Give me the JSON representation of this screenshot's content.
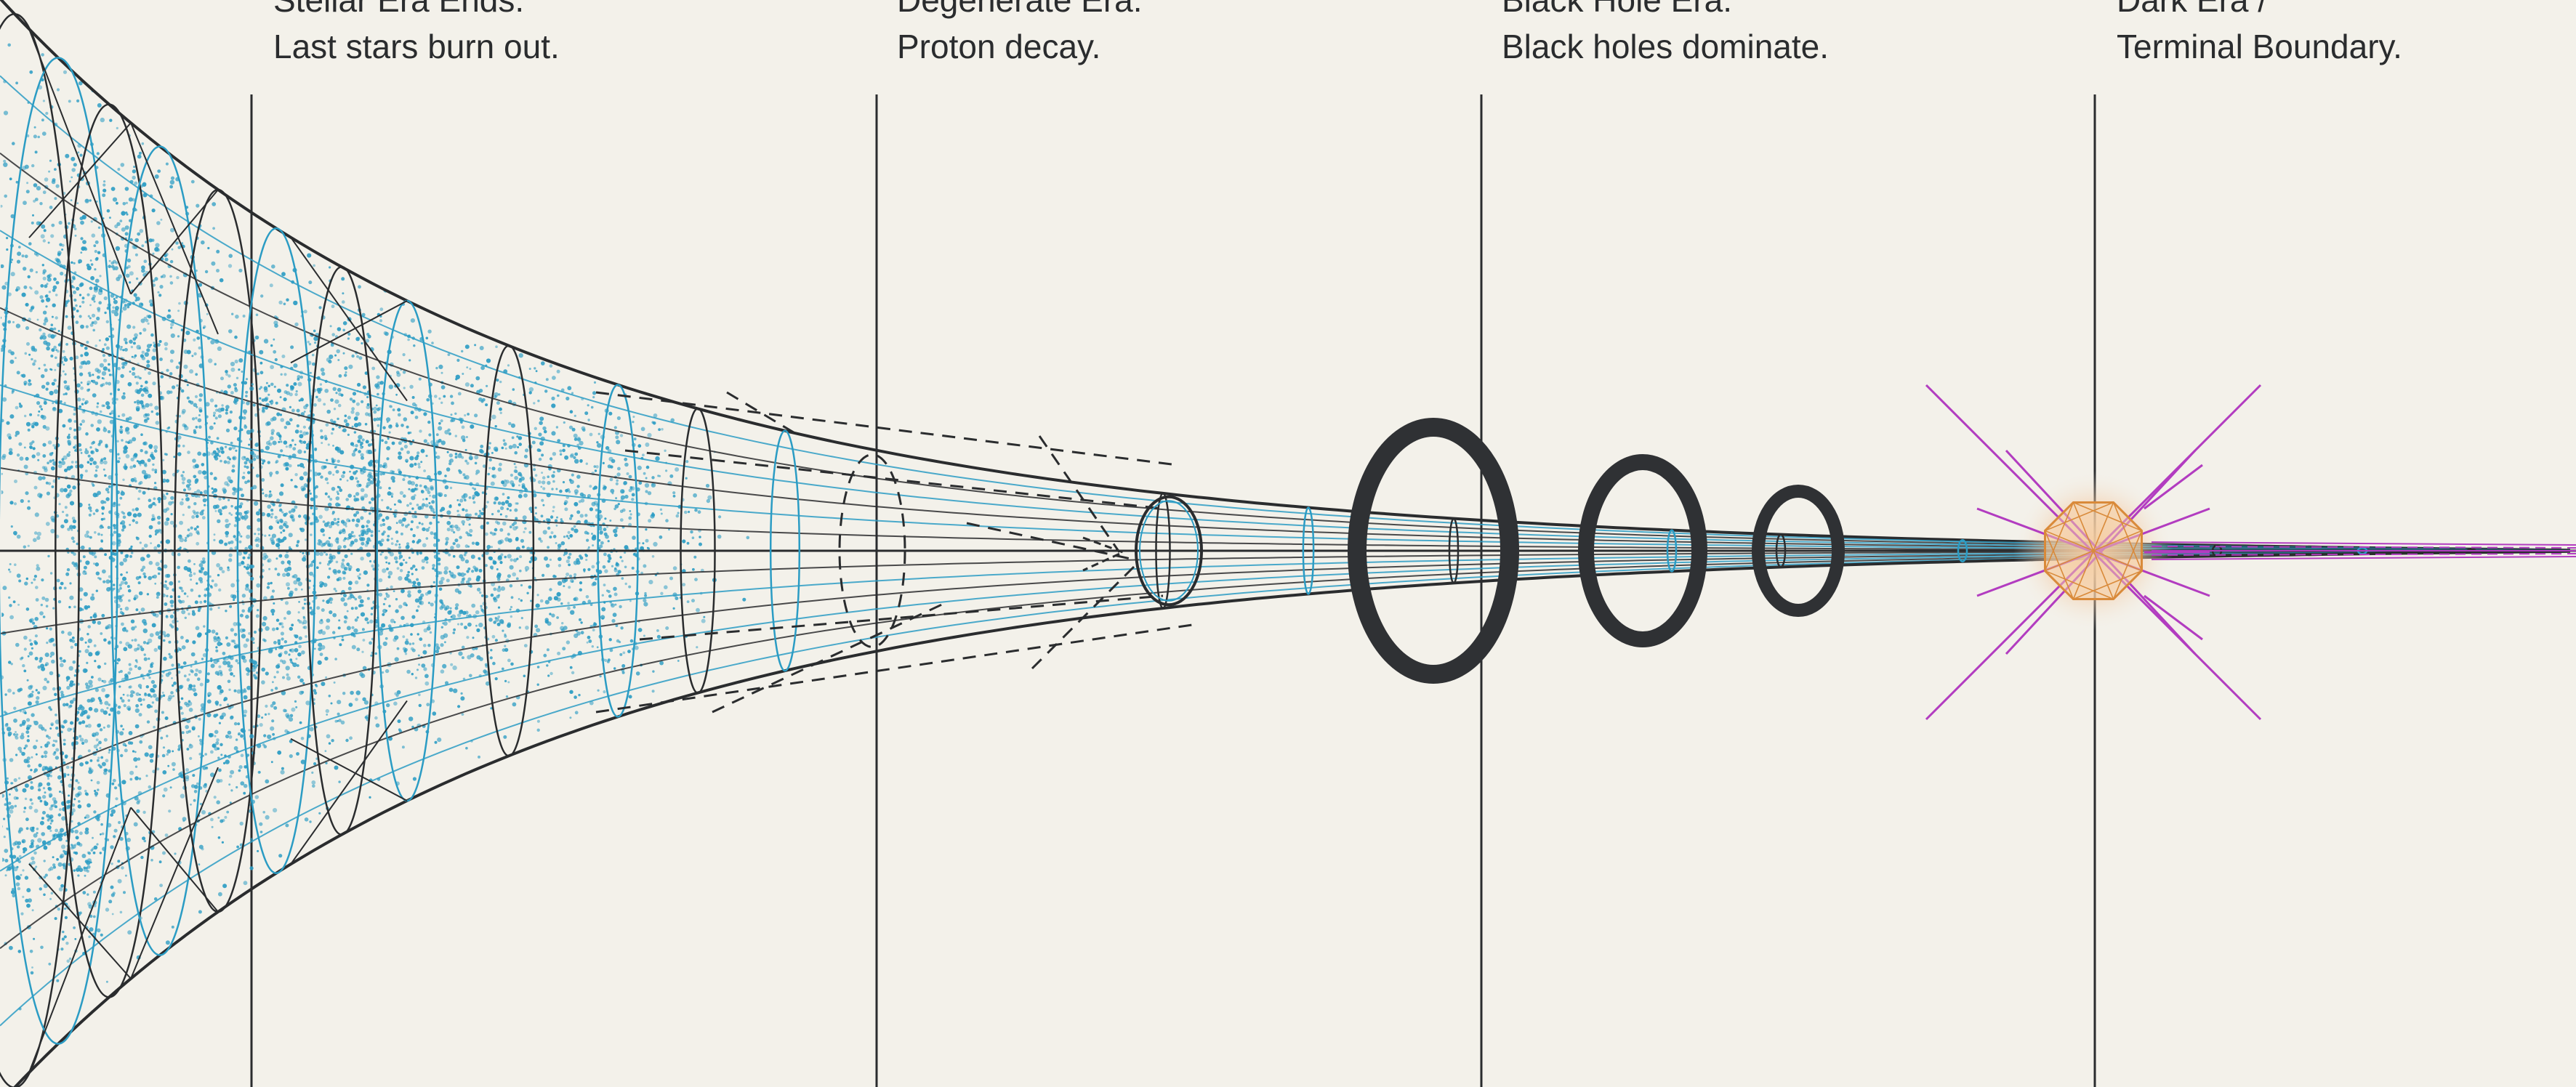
{
  "eras": [
    {
      "id": "stellar",
      "line1": "Stellar Era Ends.",
      "line2": "Last stars burn out."
    },
    {
      "id": "degenerate",
      "line1": "Degenerate Era.",
      "line2": "Proton decay."
    },
    {
      "id": "black-hole",
      "line1": "Black Hole Era.",
      "line2": "Black holes dominate."
    },
    {
      "id": "dark",
      "line1": "Dark Era /",
      "line2": "Terminal Boundary."
    }
  ],
  "colors": {
    "background": "#f3f1ea",
    "ink": "#2a2c2e",
    "cyan": "#2b9cc4",
    "magenta": "#b23cc0",
    "orange": "#d98a3a"
  }
}
